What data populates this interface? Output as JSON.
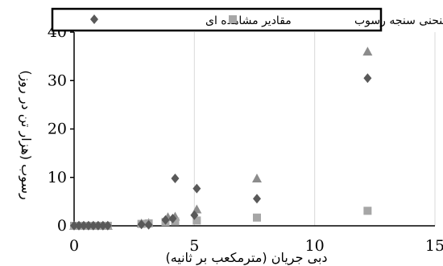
{
  "chart_data": {
    "type": "scatter",
    "xlabel": "دبی جریان (مترمکعب بر ثانیه)",
    "ylabel": "رسوب (هزار تن در روز)",
    "xlim": [
      0,
      15
    ],
    "ylim": [
      0,
      40
    ],
    "x_ticks": [
      "0",
      "5",
      "10",
      "15"
    ],
    "y_ticks": [
      "0",
      "10",
      "20",
      "30",
      "40"
    ],
    "grid": "vertical",
    "legend_position": "top",
    "series": [
      {
        "name": "مقادیر مشاهده ای",
        "marker": "diamond",
        "color": "#595959",
        "points": [
          [
            0.0,
            0.05
          ],
          [
            0.2,
            0.05
          ],
          [
            0.4,
            0.05
          ],
          [
            0.6,
            0.05
          ],
          [
            0.8,
            0.05
          ],
          [
            1.0,
            0.05
          ],
          [
            1.2,
            0.05
          ],
          [
            1.4,
            0.05
          ],
          [
            2.8,
            0.3
          ],
          [
            3.1,
            0.2
          ],
          [
            3.8,
            1.2
          ],
          [
            4.2,
            9.8
          ],
          [
            4.1,
            1.5
          ],
          [
            5.1,
            7.7
          ],
          [
            5.0,
            2.2
          ],
          [
            7.6,
            5.6
          ],
          [
            12.2,
            30.5
          ]
        ]
      },
      {
        "name": "منحنی سنجه رسوب",
        "marker": "square",
        "color": "#a6a6a6",
        "points": [
          [
            0.0,
            0.0
          ],
          [
            0.2,
            0.0
          ],
          [
            0.4,
            0.0
          ],
          [
            0.6,
            0.0
          ],
          [
            0.8,
            0.0
          ],
          [
            1.0,
            0.0
          ],
          [
            1.2,
            0.0
          ],
          [
            1.4,
            0.0
          ],
          [
            2.8,
            0.4
          ],
          [
            3.1,
            0.5
          ],
          [
            3.8,
            0.8
          ],
          [
            4.2,
            0.9
          ],
          [
            5.1,
            1.1
          ],
          [
            7.6,
            1.7
          ],
          [
            12.2,
            3.1
          ]
        ]
      },
      {
        "marker": "triangle",
        "color": "#8c8c8c",
        "points": [
          [
            0.0,
            0.0
          ],
          [
            0.2,
            0.0
          ],
          [
            0.4,
            0.0
          ],
          [
            0.6,
            0.0
          ],
          [
            0.8,
            0.0
          ],
          [
            1.0,
            0.0
          ],
          [
            1.2,
            0.0
          ],
          [
            1.4,
            0.0
          ],
          [
            2.8,
            0.5
          ],
          [
            3.1,
            0.6
          ],
          [
            3.9,
            1.8
          ],
          [
            4.2,
            1.9
          ],
          [
            5.1,
            3.4
          ],
          [
            7.6,
            9.8
          ],
          [
            12.2,
            36.0
          ]
        ]
      }
    ]
  }
}
